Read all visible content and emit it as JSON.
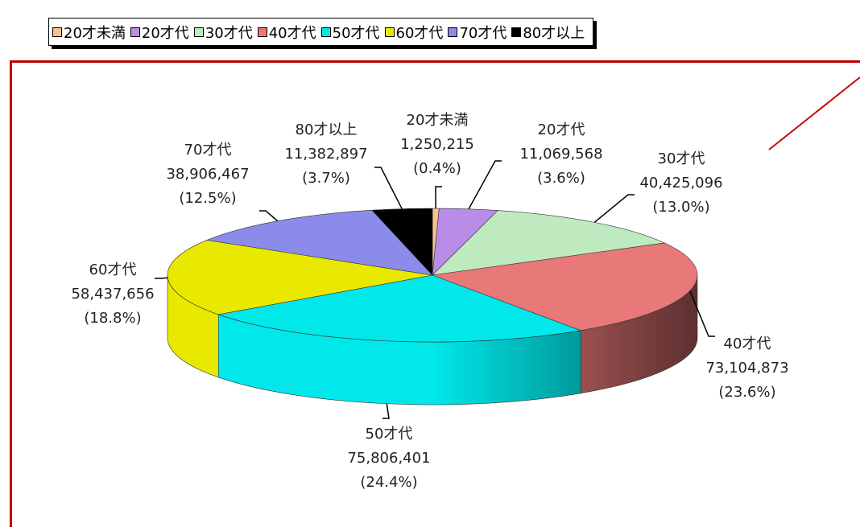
{
  "chart_data": {
    "type": "pie3d",
    "categories": [
      "20才未満",
      "20才代",
      "30才代",
      "40才代",
      "50才代",
      "60才代",
      "70才代",
      "80才以上"
    ],
    "values": [
      1250215,
      11069568,
      40425096,
      73104873,
      75806401,
      58437656,
      38906467,
      11382897
    ],
    "value_labels": [
      "1,250,215",
      "11,069,568",
      "40,425,096",
      "73,104,873",
      "75,806,401",
      "58,437,656",
      "38,906,467",
      "11,382,897"
    ],
    "percent_labels": [
      "(0.4%)",
      "(3.6%)",
      "(13.0%)",
      "(23.6%)",
      "(24.4%)",
      "(18.8%)",
      "(12.5%)",
      "(3.7%)"
    ],
    "colors": [
      "#f7c28e",
      "#b98ce8",
      "#bfe9bf",
      "#e97878",
      "#00e8ea",
      "#e9e900",
      "#8b8be9",
      "#000000"
    ],
    "legend": "top"
  }
}
